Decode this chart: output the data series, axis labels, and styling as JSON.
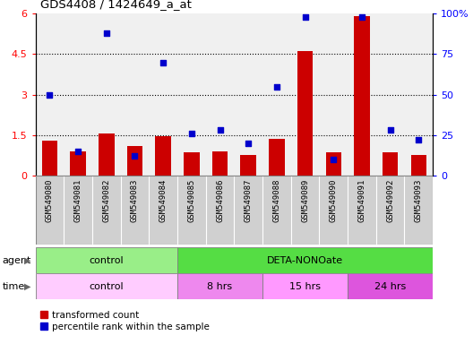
{
  "title": "GDS4408 / 1424649_a_at",
  "samples": [
    "GSM549080",
    "GSM549081",
    "GSM549082",
    "GSM549083",
    "GSM549084",
    "GSM549085",
    "GSM549086",
    "GSM549087",
    "GSM549088",
    "GSM549089",
    "GSM549090",
    "GSM549091",
    "GSM549092",
    "GSM549093"
  ],
  "bar_values": [
    1.3,
    0.9,
    1.55,
    1.1,
    1.45,
    0.85,
    0.9,
    0.75,
    1.35,
    4.6,
    0.85,
    5.9,
    0.85,
    0.75
  ],
  "scatter_values": [
    50,
    15,
    88,
    12,
    70,
    26,
    28,
    20,
    55,
    98,
    10,
    98,
    28,
    22
  ],
  "ylim_left": [
    0,
    6
  ],
  "ylim_right": [
    0,
    100
  ],
  "yticks_left": [
    0,
    1.5,
    3,
    4.5,
    6
  ],
  "yticks_right": [
    0,
    25,
    50,
    75,
    100
  ],
  "bar_color": "#cc0000",
  "scatter_color": "#0000cc",
  "agent_row": [
    {
      "label": "control",
      "start": 0,
      "end": 5,
      "color": "#99ee88"
    },
    {
      "label": "DETA-NONOate",
      "start": 5,
      "end": 14,
      "color": "#55dd44"
    }
  ],
  "time_row": [
    {
      "label": "control",
      "start": 0,
      "end": 5,
      "color": "#ffccff"
    },
    {
      "label": "8 hrs",
      "start": 5,
      "end": 8,
      "color": "#ee88ee"
    },
    {
      "label": "15 hrs",
      "start": 8,
      "end": 11,
      "color": "#ff99ff"
    },
    {
      "label": "24 hrs",
      "start": 11,
      "end": 14,
      "color": "#dd55dd"
    }
  ],
  "legend_bar_label": "transformed count",
  "legend_scatter_label": "percentile rank within the sample",
  "label_agent": "agent",
  "label_time": "time",
  "plot_bg": "#f0f0f0",
  "label_row_bg": "#d0d0d0",
  "grid_color": "#888888",
  "dotted_color": "#000000"
}
